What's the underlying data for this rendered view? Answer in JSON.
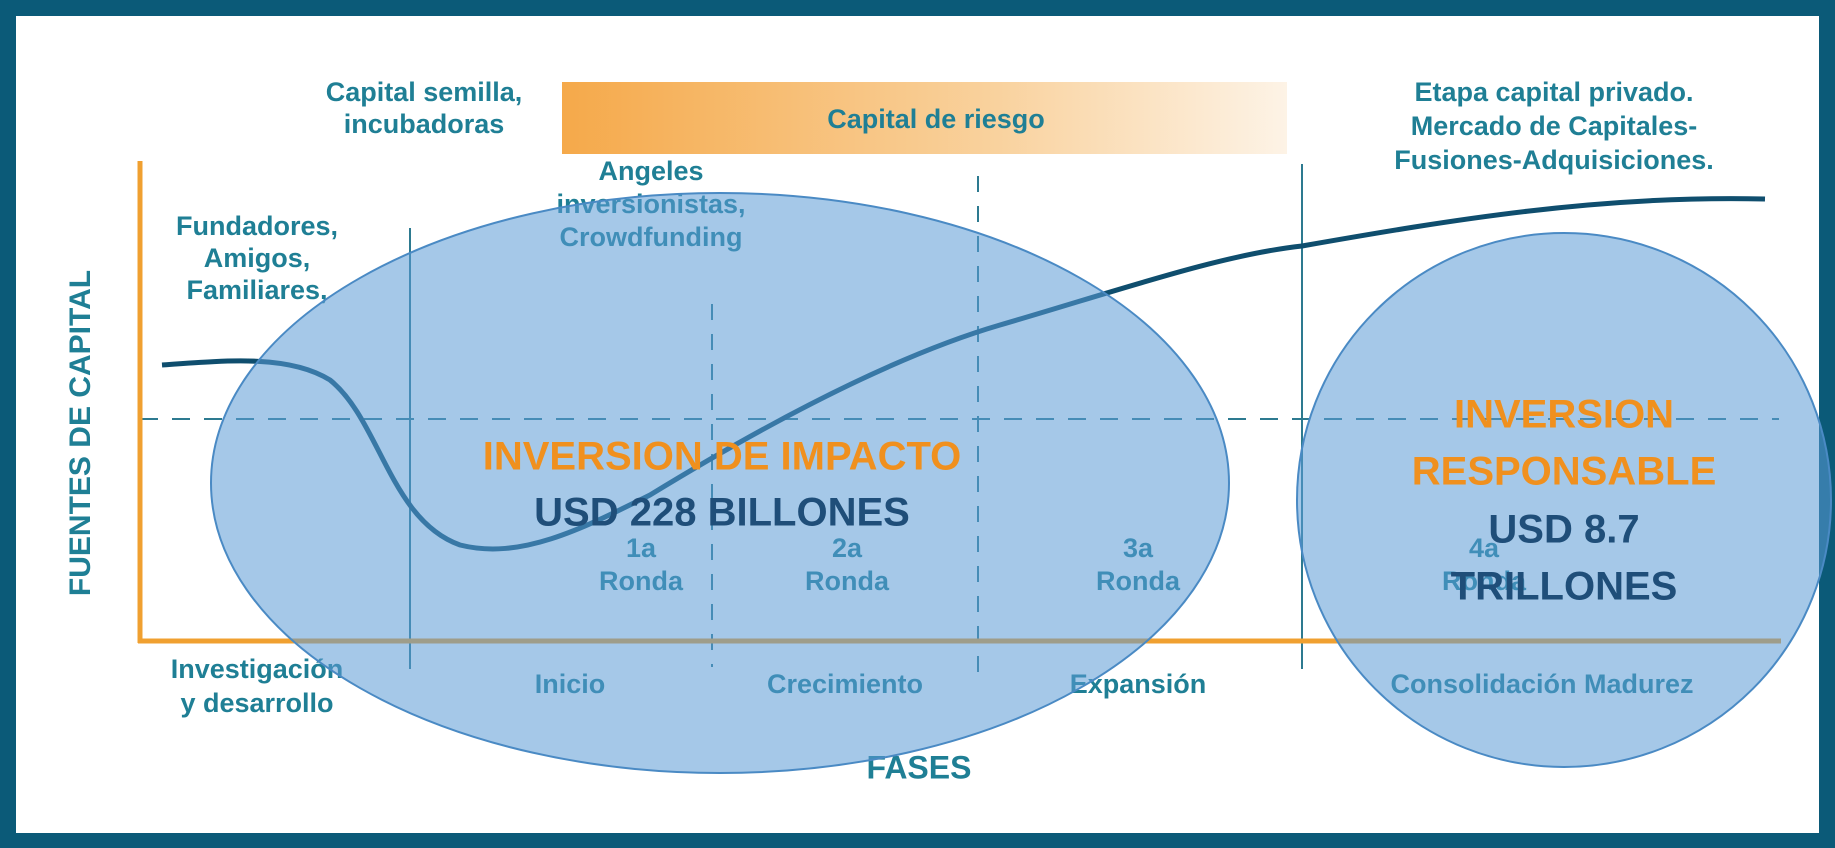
{
  "diagram": {
    "top_labels": {
      "seed": [
        "Capital semilla,",
        "incubadoras"
      ],
      "venture": "Capital de riesgo",
      "private": [
        "Etapa capital privado.",
        "Mercado de Capitales-",
        "Fusiones-Adquisiciones."
      ],
      "angels": [
        "Angeles",
        "inversionistas,",
        "Crowdfunding"
      ],
      "founders": [
        "Fundadores,",
        "Amigos,",
        "Familiares,"
      ]
    },
    "y_axis_label": "FUENTES DE CAPITAL",
    "x_axis_label": "FASES",
    "rounds": [
      [
        "1a",
        "Ronda"
      ],
      [
        "2a",
        "Ronda"
      ],
      [
        "3a",
        "Ronda"
      ],
      [
        "4a",
        "Ronda"
      ]
    ],
    "phases": [
      [
        "Investigación",
        "y desarrollo"
      ],
      [
        "Inicio"
      ],
      [
        "Crecimiento"
      ],
      [
        "Expansión"
      ],
      [
        "Consolidación Madurez"
      ]
    ],
    "overlays": {
      "impact": {
        "title": [
          "INVERSION DE IMPACTO"
        ],
        "amount": [
          "USD 228 BILLONES"
        ]
      },
      "responsible": {
        "title": [
          "INVERSION",
          "RESPONSABLE"
        ],
        "amount": [
          "USD 8.7",
          "TRILLONES"
        ]
      }
    }
  }
}
